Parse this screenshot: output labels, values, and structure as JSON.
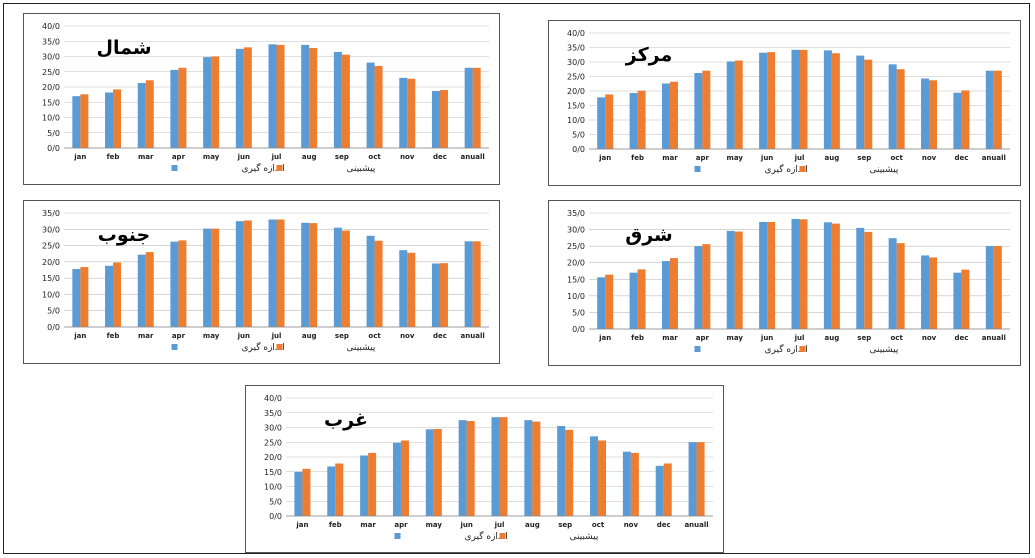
{
  "colors": {
    "measured": "#5b9bd5",
    "predicted": "#ed7d31",
    "grid": "#bfbfbf"
  },
  "chart_data": [
    {
      "type": "bar",
      "title": "شمال",
      "categories": [
        "jan",
        "feb",
        "mar",
        "apr",
        "may",
        "jun",
        "jul",
        "aug",
        "sep",
        "oct",
        "nov",
        "dec",
        "anuall"
      ],
      "yticks": [
        "0/0",
        "5/0",
        "10/0",
        "15/0",
        "20/0",
        "25/0",
        "30/0",
        "35/0",
        "40/0"
      ],
      "ylim": [
        0,
        40
      ],
      "series": [
        {
          "name": "اندازه گیری",
          "values": [
            17,
            18.2,
            21.3,
            25.6,
            29.8,
            32.5,
            34,
            33.8,
            31.5,
            28,
            23,
            18.7,
            26.3
          ]
        },
        {
          "name": "پیشبینی",
          "values": [
            17.6,
            19.2,
            22.2,
            26.3,
            30,
            33,
            33.8,
            32.8,
            30.6,
            26.9,
            22.7,
            19,
            26.3
          ]
        }
      ],
      "legend": "bottom",
      "grid": true
    },
    {
      "type": "bar",
      "title": "مرکز",
      "categories": [
        "jan",
        "feb",
        "mar",
        "apr",
        "may",
        "jun",
        "jul",
        "aug",
        "sep",
        "oct",
        "nov",
        "dec",
        "anuall"
      ],
      "yticks": [
        "0/0",
        "5/0",
        "10/0",
        "15/0",
        "20/0",
        "25/0",
        "30/0",
        "35/0",
        "40/0"
      ],
      "ylim": [
        0,
        40
      ],
      "series": [
        {
          "name": "اندازه گیری",
          "values": [
            17.8,
            19.3,
            22.6,
            26.2,
            30.2,
            33.2,
            34.2,
            34,
            32.2,
            29.2,
            24.3,
            19.4,
            27
          ]
        },
        {
          "name": "پیشبینی",
          "values": [
            18.8,
            20.1,
            23.2,
            27,
            30.5,
            33.4,
            34.2,
            33,
            30.8,
            27.5,
            23.7,
            20.2,
            27
          ]
        }
      ],
      "legend": "bottom",
      "grid": true
    },
    {
      "type": "bar",
      "title": "جنوب",
      "categories": [
        "jan",
        "feb",
        "mar",
        "apr",
        "may",
        "jun",
        "jul",
        "aug",
        "sep",
        "oct",
        "nov",
        "dec",
        "anuall"
      ],
      "yticks": [
        "0/0",
        "5/0",
        "10/0",
        "15/0",
        "20/0",
        "25/0",
        "30/0",
        "35/0"
      ],
      "ylim": [
        0,
        35
      ],
      "series": [
        {
          "name": "اندازه گیری",
          "values": [
            17.8,
            18.8,
            22.2,
            26.2,
            30.2,
            32.5,
            33,
            32,
            30.5,
            28,
            23.6,
            19.5,
            26.3
          ]
        },
        {
          "name": "پیشبینی",
          "values": [
            18.4,
            19.8,
            23,
            26.6,
            30.2,
            32.7,
            33,
            31.9,
            29.6,
            26.5,
            22.8,
            19.6,
            26.3
          ]
        }
      ],
      "legend": "bottom",
      "grid": true
    },
    {
      "type": "bar",
      "title": "شرق",
      "categories": [
        "jan",
        "feb",
        "mar",
        "apr",
        "may",
        "jun",
        "jul",
        "aug",
        "sep",
        "oct",
        "nov",
        "dec",
        "anuall"
      ],
      "yticks": [
        "0/0",
        "5/0",
        "10/0",
        "15/0",
        "20/0",
        "25/0",
        "30/0",
        "35/0"
      ],
      "ylim": [
        0,
        35
      ],
      "series": [
        {
          "name": "اندازه گیری",
          "values": [
            15.6,
            17,
            20.5,
            25,
            29.6,
            32.3,
            33.2,
            32.2,
            30.5,
            27.4,
            22.2,
            17,
            25
          ]
        },
        {
          "name": "پیشبینی",
          "values": [
            16.4,
            18,
            21.4,
            25.6,
            29.4,
            32.3,
            33.1,
            31.8,
            29.3,
            25.9,
            21.6,
            17.9,
            25
          ]
        }
      ],
      "legend": "bottom",
      "grid": true
    },
    {
      "type": "bar",
      "title": "غرب",
      "categories": [
        "jan",
        "feb",
        "mar",
        "apr",
        "may",
        "jun",
        "jul",
        "aug",
        "sep",
        "oct",
        "nov",
        "dec",
        "anuall"
      ],
      "yticks": [
        "0/0",
        "5/0",
        "10/0",
        "15/0",
        "20/0",
        "25/0",
        "30/0",
        "35/0",
        "40/0"
      ],
      "ylim": [
        0,
        40
      ],
      "series": [
        {
          "name": "اندازه گیری",
          "values": [
            15,
            16.8,
            20.5,
            24.8,
            29.4,
            32.5,
            33.5,
            32.5,
            30.5,
            27,
            21.8,
            17,
            25
          ]
        },
        {
          "name": "پیشبینی",
          "values": [
            16,
            17.8,
            21.4,
            25.6,
            29.5,
            32.2,
            33.5,
            32,
            29.2,
            25.6,
            21.4,
            17.8,
            25
          ]
        }
      ],
      "legend": "bottom",
      "grid": true
    }
  ]
}
